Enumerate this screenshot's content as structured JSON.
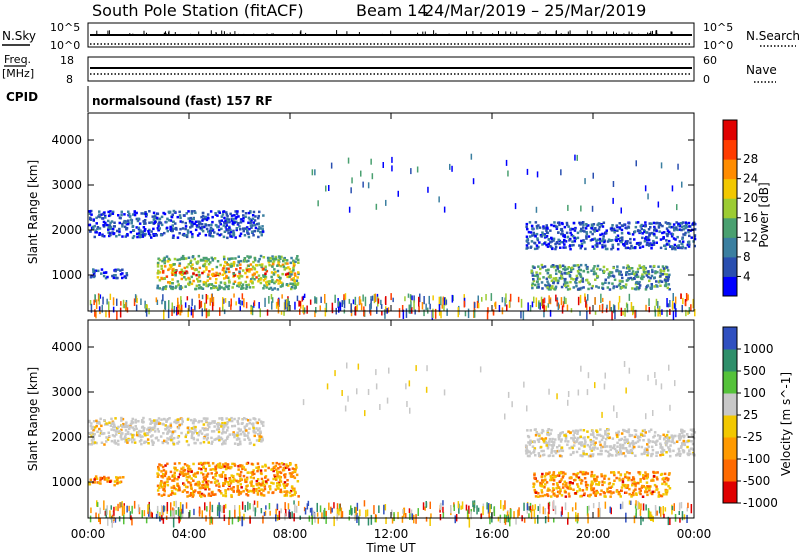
{
  "header": {
    "title": "South Pole Station (fitACF)",
    "beam": "Beam 14",
    "dates": "24/Mar/2019 – 25/Mar/2019"
  },
  "strips": {
    "nsky_label": "N.Sky",
    "nsky_top": "10^5",
    "nsky_bottom": "10^0",
    "nsearch_label": "N.Search",
    "nsearch_top": "10^5",
    "nsearch_bottom": "10^0",
    "freq_label_1": "Freq.",
    "freq_label_2": "[MHz]",
    "freq_top": "18",
    "freq_bottom": "8",
    "nave_label": "Nave",
    "nave_top": "60",
    "nave_bottom": "0",
    "cpid_label": "CPID",
    "cpid_value": "normalsound (fast) 157 RF"
  },
  "chart_data": [
    {
      "type": "heatmap",
      "panel": "power",
      "ylabel": "Slant Range [km]",
      "x_ticks": [
        "00:00",
        "04:00",
        "08:00",
        "12:00",
        "16:00",
        "20:00",
        "00:00"
      ],
      "y_ticks": [
        1000,
        2000,
        3000,
        4000
      ],
      "ylim": [
        200,
        4600
      ],
      "xlim_hours": [
        0,
        24
      ],
      "colorbar_label": "Power [dB]",
      "colorbar_ticks": [
        4,
        8,
        12,
        16,
        20,
        24,
        28
      ],
      "colors": [
        "#0000ff",
        "#2a4fb0",
        "#3b7fa0",
        "#4aa070",
        "#9ccc33",
        "#f2c800",
        "#ff8c00",
        "#ff3c00",
        "#e00000"
      ],
      "echo_regions": [
        {
          "start_h": 0.0,
          "end_h": 6.9,
          "range_km": [
            1850,
            2450
          ],
          "level": "low"
        },
        {
          "start_h": 0.0,
          "end_h": 1.5,
          "range_km": [
            950,
            1150
          ],
          "level": "low"
        },
        {
          "start_h": 2.7,
          "end_h": 8.3,
          "range_km": [
            700,
            1450
          ],
          "level": "high"
        },
        {
          "start_h": 17.3,
          "end_h": 24.0,
          "range_km": [
            1600,
            2200
          ],
          "level": "low"
        },
        {
          "start_h": 17.5,
          "end_h": 23.0,
          "range_km": [
            700,
            1250
          ],
          "level": "medium"
        },
        {
          "start_h": 0.0,
          "end_h": 24.0,
          "range_km": [
            200,
            600
          ],
          "level": "scatter"
        }
      ]
    },
    {
      "type": "heatmap",
      "panel": "velocity",
      "ylabel": "Slant Range [km]",
      "xlabel": "Time UT",
      "x_ticks": [
        "00:00",
        "04:00",
        "08:00",
        "12:00",
        "16:00",
        "20:00",
        "00:00"
      ],
      "y_ticks": [
        1000,
        2000,
        3000,
        4000
      ],
      "ylim": [
        200,
        4600
      ],
      "xlim_hours": [
        0,
        24
      ],
      "colorbar_label": "Velocity [m s^-1]",
      "colorbar_ticks": [
        "1000",
        "500",
        "100",
        "25",
        "-25",
        "-100",
        "-500",
        "-1000"
      ],
      "colors": [
        "#3050c0",
        "#2f8f6a",
        "#55c23a",
        "#c8c8c8",
        "#f2c800",
        "#ff9a00",
        "#ff6a00",
        "#e00000"
      ],
      "echo_regions": [
        {
          "start_h": 0.0,
          "end_h": 6.9,
          "range_km": [
            1850,
            2450
          ],
          "class": "ground"
        },
        {
          "start_h": 0.0,
          "end_h": 1.5,
          "range_km": [
            950,
            1150
          ],
          "class": "away"
        },
        {
          "start_h": 2.7,
          "end_h": 8.3,
          "range_km": [
            700,
            1450
          ],
          "class": "away"
        },
        {
          "start_h": 17.3,
          "end_h": 24.0,
          "range_km": [
            1600,
            2200
          ],
          "class": "ground"
        },
        {
          "start_h": 17.5,
          "end_h": 23.0,
          "range_km": [
            700,
            1250
          ],
          "class": "away"
        },
        {
          "start_h": 0.0,
          "end_h": 24.0,
          "range_km": [
            200,
            600
          ],
          "class": "scatter"
        }
      ]
    }
  ]
}
